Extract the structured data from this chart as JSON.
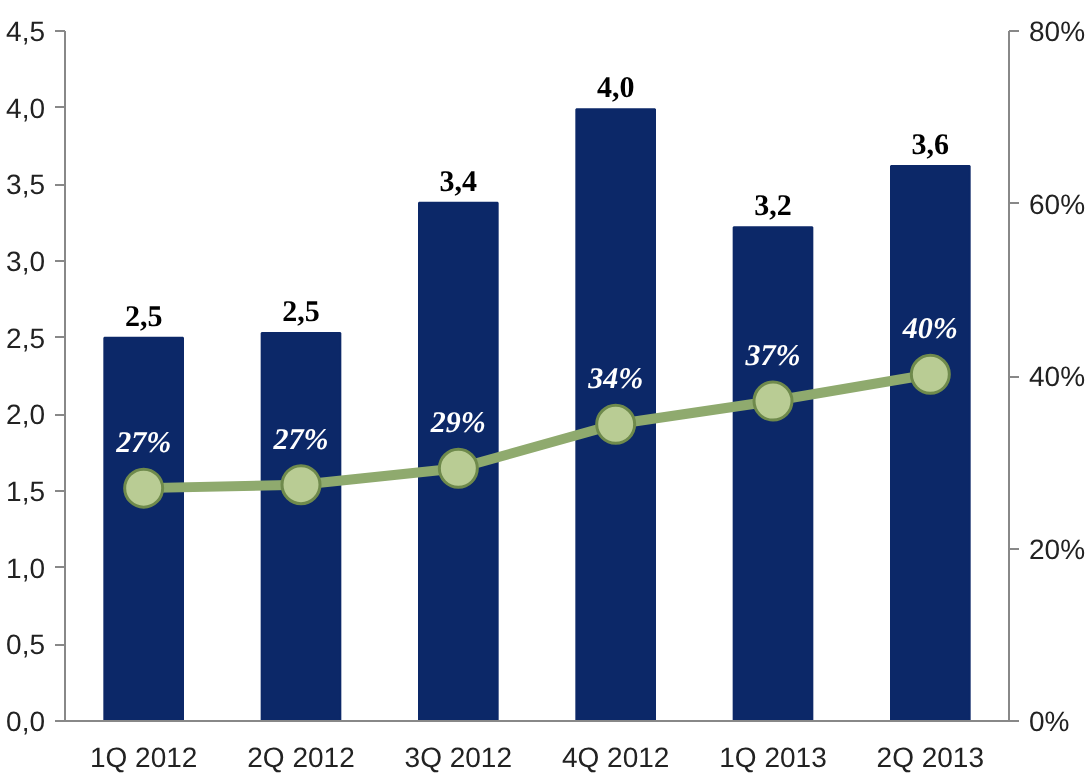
{
  "chart_data": {
    "type": "bar",
    "categories": [
      "1Q 2012",
      "2Q 2012",
      "3Q 2012",
      "4Q 2012",
      "1Q 2013",
      "2Q 2013"
    ],
    "ylim": [
      0,
      4.5
    ],
    "yticks": [
      {
        "value": 0,
        "label": "0,0"
      },
      {
        "value": 0.5,
        "label": "0,5"
      },
      {
        "value": 1,
        "label": "1,0"
      },
      {
        "value": 1.5,
        "label": "1,5"
      },
      {
        "value": 2,
        "label": "2,0"
      },
      {
        "value": 2.5,
        "label": "2,5"
      },
      {
        "value": 3,
        "label": "3,0"
      },
      {
        "value": 3.5,
        "label": "3,5"
      },
      {
        "value": 4,
        "label": "4,0"
      },
      {
        "value": 4.5,
        "label": "4,5"
      }
    ],
    "y2lim": [
      0,
      80
    ],
    "y2ticks": [
      {
        "value": 0,
        "label": "0%"
      },
      {
        "value": 20,
        "label": "20%"
      },
      {
        "value": 40,
        "label": "40%"
      },
      {
        "value": 60,
        "label": "60%"
      },
      {
        "value": 80,
        "label": "80%"
      }
    ],
    "grid": false,
    "series": [
      {
        "color": "#0c2868",
        "values": [
          2.5,
          2.53,
          3.38,
          3.99,
          3.22,
          3.62
        ],
        "value_labels": [
          "2,5",
          "2,5",
          "3,4",
          "4,0",
          "3,2",
          "3,6"
        ]
      },
      {
        "type": "line",
        "axis": "y2",
        "color": "#8faa6e",
        "marker": "circle",
        "line_style": "solid",
        "values": [
          27,
          27.4,
          29.3,
          34.4,
          37.1,
          40.2
        ],
        "value_labels": [
          "27%",
          "27%",
          "29%",
          "34%",
          "37%",
          "40%"
        ]
      }
    ]
  }
}
